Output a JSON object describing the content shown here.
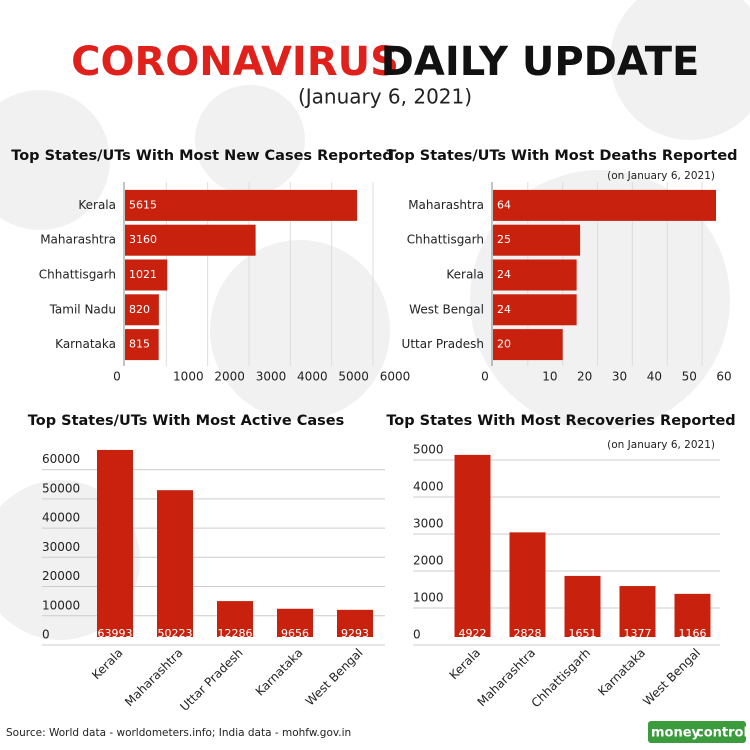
{
  "header": {
    "title_red": "CORONAVIRUS",
    "title_black": "DAILY UPDATE",
    "date": "(January 6, 2021)"
  },
  "chart_data": [
    {
      "type": "barh",
      "title": "Top States/UTs With Most New Cases Reported",
      "color": "#c8220f",
      "categories": [
        "Kerala",
        "Maharashtra",
        "Chhattisgarh",
        "Tamil Nadu",
        "Karnataka"
      ],
      "values": [
        5615,
        3160,
        1021,
        820,
        815
      ],
      "xlim": [
        0,
        6000
      ],
      "xticks": [
        0,
        1000,
        2000,
        3000,
        4000,
        5000,
        6000
      ],
      "grid": true
    },
    {
      "type": "barh",
      "title": "Top States/UTs With Most Deaths Reported",
      "subtitle": "(on January 6, 2021)",
      "color": "#c8220f",
      "categories": [
        "Maharashtra",
        "Chhattisgarh",
        "Kerala",
        "West Bengal",
        "Uttar Pradesh"
      ],
      "values": [
        64,
        25,
        24,
        24,
        20
      ],
      "xlim": [
        0,
        64
      ],
      "xticks": [
        0,
        10,
        20,
        30,
        40,
        50,
        60
      ],
      "grid": true
    },
    {
      "type": "bar",
      "title": "Top States/UTs With Most Active Cases",
      "color": "#c8220f",
      "categories": [
        "Kerala",
        "Maharashtra",
        "Uttar Pradesh",
        "Karnataka",
        "West Bengal"
      ],
      "values": [
        63993,
        50223,
        12286,
        9656,
        9293
      ],
      "ylim": [
        0,
        65000
      ],
      "yticks": [
        0,
        10000,
        20000,
        30000,
        40000,
        50000,
        60000
      ],
      "grid": true
    },
    {
      "type": "bar",
      "title": "Top States With Most Recoveries Reported",
      "subtitle": "(on January 6, 2021)",
      "color": "#c8220f",
      "categories": [
        "Kerala",
        "Maharashtra",
        "Chhattisgarh",
        "Karnataka",
        "West Bengal"
      ],
      "values": [
        4922,
        2828,
        1651,
        1377,
        1166
      ],
      "ylim": [
        0,
        5000
      ],
      "yticks": [
        0,
        1000,
        2000,
        3000,
        4000,
        5000
      ],
      "grid": true
    }
  ],
  "source": "Source: World data - worldometers.info; India data - mohfw.gov.in",
  "logo": {
    "part1": "money",
    "part2": "control"
  }
}
